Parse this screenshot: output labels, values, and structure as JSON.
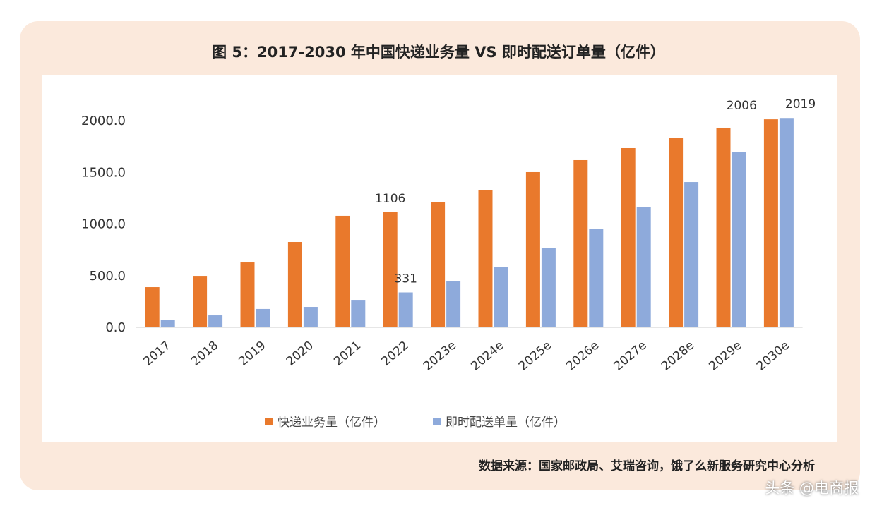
{
  "chart_data": {
    "type": "bar",
    "title": "图 5：2017-2030 年中国快递业务量 VS 即时配送订单量（亿件）",
    "categories": [
      "2017",
      "2018",
      "2019",
      "2020",
      "2021",
      "2022",
      "2023e",
      "2024e",
      "2025e",
      "2026e",
      "2027e",
      "2028e",
      "2029e",
      "2030e"
    ],
    "series": [
      {
        "name": "快递业务量（亿件）",
        "color": "#e9792c",
        "values": [
          382,
          491,
          621,
          819,
          1072,
          1106,
          1208,
          1324,
          1495,
          1611,
          1727,
          1829,
          1925,
          2006
        ]
      },
      {
        "name": "即时配送单量（亿件）",
        "color": "#8eaadb",
        "values": [
          68,
          109,
          171,
          191,
          259,
          331,
          437,
          580,
          758,
          942,
          1154,
          1399,
          1686,
          2019
        ]
      }
    ],
    "data_labels": [
      {
        "series": 0,
        "index": 5,
        "text": "1106"
      },
      {
        "series": 1,
        "index": 5,
        "text": "331"
      },
      {
        "series": 0,
        "index": 13,
        "text": "2006"
      },
      {
        "series": 1,
        "index": 13,
        "text": "2019"
      }
    ],
    "yticks": [
      "0.0",
      "500.0",
      "1000.0",
      "1500.0",
      "2000.0"
    ],
    "ylim": [
      0,
      2000
    ],
    "legend": "bottom",
    "grid": false
  },
  "source": "数据来源：国家邮政局、艾瑞咨询，饿了么新服务研究中心分析",
  "watermark": "头条 @电商报"
}
